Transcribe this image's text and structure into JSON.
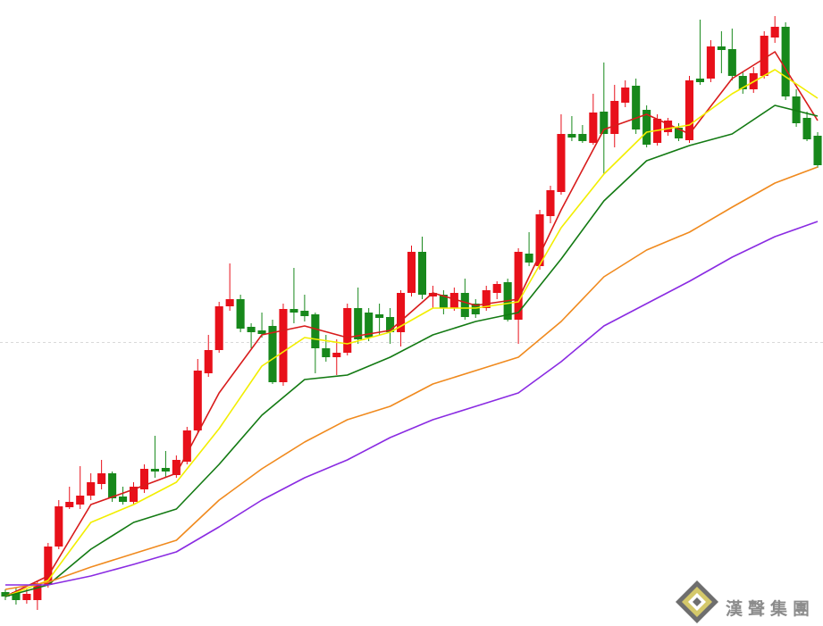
{
  "chart_data": {
    "type": "candlestick",
    "watermark": "漢聲集團",
    "up_color": "#e8101a",
    "down_color": "#17881b",
    "xlim": [
      -0.5,
      76.5
    ],
    "ylim": [
      0,
      700
    ],
    "open": [
      37,
      37,
      28,
      28,
      45,
      88,
      132,
      135,
      145,
      158,
      170,
      144,
      138,
      152,
      175,
      176,
      168,
      183,
      218,
      282,
      308,
      357,
      365,
      334,
      330,
      335,
      272,
      354,
      352,
      348,
      310,
      300,
      305,
      355,
      350,
      348,
      345,
      328,
      372,
      418,
      368,
      370,
      355,
      372,
      360,
      355,
      372,
      384,
      342,
      416,
      402,
      458,
      485,
      550,
      550,
      540,
      575,
      550,
      585,
      604,
      577,
      540,
      552,
      557,
      543,
      612,
      612,
      648,
      645,
      615,
      600,
      615,
      658,
      670,
      592,
      568,
      548
    ],
    "high": [
      40,
      42,
      40,
      50,
      92,
      140,
      155,
      178,
      170,
      185,
      172,
      155,
      160,
      180,
      212,
      195,
      190,
      222,
      298,
      325,
      362,
      405,
      370,
      338,
      350,
      342,
      360,
      400,
      370,
      350,
      325,
      320,
      360,
      378,
      355,
      360,
      355,
      375,
      425,
      435,
      380,
      375,
      378,
      388,
      365,
      380,
      385,
      388,
      422,
      440,
      465,
      492,
      572,
      570,
      560,
      595,
      630,
      605,
      610,
      612,
      582,
      572,
      568,
      562,
      615,
      678,
      655,
      665,
      668,
      620,
      625,
      665,
      682,
      675,
      600,
      575,
      552
    ],
    "low": [
      28,
      23,
      24,
      17,
      42,
      85,
      130,
      130,
      140,
      152,
      138,
      135,
      135,
      148,
      165,
      165,
      165,
      180,
      215,
      278,
      305,
      352,
      328,
      310,
      322,
      270,
      268,
      338,
      340,
      282,
      295,
      280,
      302,
      315,
      318,
      325,
      315,
      312,
      368,
      365,
      355,
      348,
      352,
      342,
      344,
      352,
      365,
      340,
      315,
      402,
      398,
      450,
      482,
      542,
      540,
      538,
      505,
      535,
      580,
      550,
      535,
      537,
      548,
      542,
      540,
      605,
      608,
      618,
      610,
      595,
      596,
      612,
      652,
      588,
      558,
      542,
      512
    ],
    "close": [
      32,
      28,
      35,
      47,
      88,
      133,
      138,
      145,
      160,
      170,
      142,
      138,
      155,
      175,
      172,
      172,
      185,
      218,
      285,
      308,
      357,
      365,
      332,
      328,
      326,
      272,
      354,
      350,
      346,
      310,
      300,
      305,
      355,
      320,
      322,
      344,
      328,
      372,
      418,
      370,
      372,
      355,
      372,
      345,
      348,
      375,
      382,
      342,
      418,
      406,
      460,
      487,
      550,
      546,
      542,
      574,
      550,
      587,
      602,
      555,
      538,
      567,
      565,
      545,
      610,
      608,
      648,
      644,
      615,
      600,
      618,
      660,
      670,
      592,
      562,
      544,
      515
    ],
    "series": [
      {
        "color": "#d81b1b",
        "x": [
          0,
          4,
          8,
          12,
          16,
          20,
          24,
          28,
          32,
          36,
          40,
          44,
          48,
          52,
          56,
          60,
          64,
          68,
          72,
          76
        ],
        "values": [
          32,
          55,
          135,
          152,
          170,
          260,
          325,
          335,
          322,
          330,
          372,
          358,
          365,
          465,
          555,
          572,
          550,
          612,
          642,
          565
        ]
      },
      {
        "color": "#f2ee00",
        "x": [
          0,
          4,
          8,
          12,
          16,
          20,
          24,
          28,
          32,
          36,
          40,
          44,
          48,
          52,
          56,
          60,
          64,
          68,
          72,
          76
        ],
        "values": [
          32,
          50,
          115,
          135,
          160,
          220,
          290,
          322,
          315,
          328,
          355,
          355,
          362,
          445,
          505,
          552,
          560,
          595,
          622,
          590
        ]
      },
      {
        "color": "#137a13",
        "x": [
          0,
          4,
          8,
          12,
          16,
          20,
          24,
          28,
          32,
          36,
          40,
          44,
          48,
          52,
          56,
          60,
          64,
          68,
          72,
          76
        ],
        "values": [
          32,
          45,
          85,
          115,
          130,
          180,
          235,
          275,
          280,
          300,
          325,
          340,
          350,
          410,
          475,
          520,
          537,
          550,
          582,
          570
        ]
      },
      {
        "color": "#f08a1e",
        "x": [
          0,
          4,
          8,
          12,
          16,
          20,
          24,
          28,
          32,
          36,
          40,
          44,
          48,
          52,
          56,
          60,
          64,
          68,
          72,
          76
        ],
        "values": [
          40,
          48,
          65,
          80,
          95,
          140,
          175,
          205,
          230,
          245,
          270,
          285,
          300,
          340,
          390,
          420,
          440,
          468,
          495,
          513
        ]
      },
      {
        "color": "#8a2be2",
        "x": [
          0,
          4,
          8,
          12,
          16,
          20,
          24,
          28,
          32,
          36,
          40,
          44,
          48,
          52,
          56,
          60,
          64,
          68,
          72,
          76
        ],
        "values": [
          45,
          45,
          55,
          68,
          82,
          110,
          140,
          165,
          185,
          210,
          230,
          245,
          260,
          295,
          335,
          360,
          385,
          412,
          435,
          452
        ]
      }
    ]
  }
}
